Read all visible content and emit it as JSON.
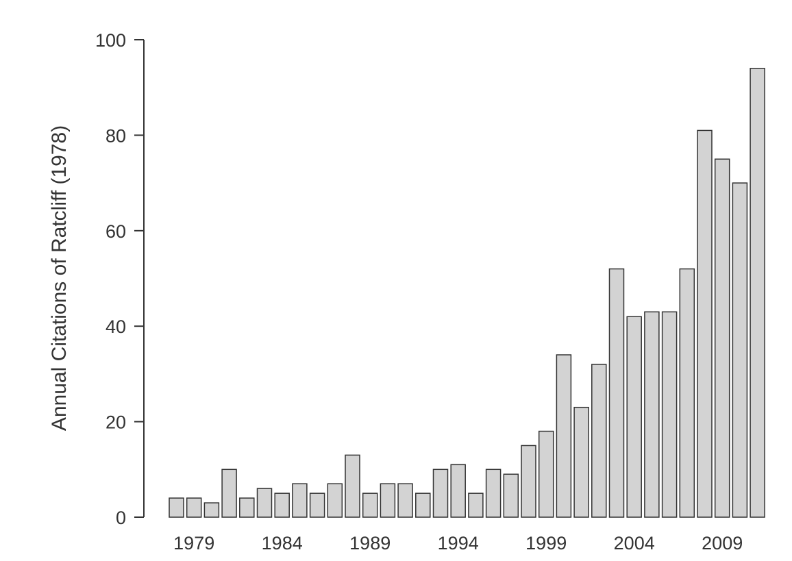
{
  "chart_data": {
    "type": "bar",
    "title": "",
    "xlabel": "",
    "ylabel": "Annual Citations of Ratcliff (1978)",
    "ylim": [
      0,
      100
    ],
    "yticks": [
      0,
      20,
      40,
      60,
      80,
      100
    ],
    "xtick_labels": [
      "1979",
      "1984",
      "1989",
      "1994",
      "1999",
      "2004",
      "2009"
    ],
    "categories": [
      "1978",
      "1979",
      "1980",
      "1981",
      "1982",
      "1983",
      "1984",
      "1985",
      "1986",
      "1987",
      "1988",
      "1989",
      "1990",
      "1991",
      "1992",
      "1993",
      "1994",
      "1995",
      "1996",
      "1997",
      "1998",
      "1999",
      "2000",
      "2001",
      "2002",
      "2003",
      "2004",
      "2005",
      "2006",
      "2007",
      "2008",
      "2009",
      "2010",
      "2011"
    ],
    "values": [
      4,
      4,
      3,
      10,
      4,
      6,
      5,
      7,
      5,
      7,
      13,
      5,
      7,
      7,
      5,
      10,
      11,
      5,
      10,
      9,
      15,
      18,
      34,
      23,
      32,
      52,
      42,
      43,
      43,
      52,
      81,
      75,
      70,
      94
    ],
    "bar_color": "#d3d3d3",
    "bar_edge_color": "#333333",
    "grid": false
  }
}
